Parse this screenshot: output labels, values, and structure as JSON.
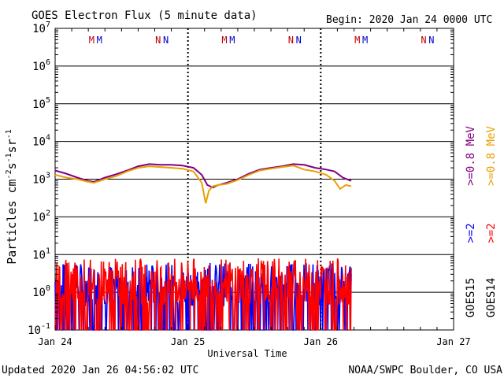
{
  "chart_data": {
    "type": "line",
    "title": "GOES Electron Flux (5 minute data)",
    "begin_label": "Begin: 2020 Jan 24 0000 UTC",
    "xlabel": "Universal Time",
    "ylabel_main": "Particles cm",
    "ylabel_sup1": "-2",
    "ylabel_s": "s",
    "ylabel_sup2": "-1",
    "ylabel_sr": "sr",
    "ylabel_sup3": "-1",
    "yscale": "log",
    "ylim": [
      0.1,
      10000000
    ],
    "y_ticks": [
      {
        "base": "10",
        "exp": "7",
        "value": 10000000
      },
      {
        "base": "10",
        "exp": "6",
        "value": 1000000
      },
      {
        "base": "10",
        "exp": "5",
        "value": 100000
      },
      {
        "base": "10",
        "exp": "4",
        "value": 10000
      },
      {
        "base": "10",
        "exp": "3",
        "value": 1000
      },
      {
        "base": "10",
        "exp": "2",
        "value": 100
      },
      {
        "base": "10",
        "exp": "1",
        "value": 10
      },
      {
        "base": "10",
        "exp": "0",
        "value": 1
      },
      {
        "base": "10",
        "exp": "-1",
        "value": 0.1
      }
    ],
    "x_ticks": [
      "Jan 24",
      "Jan 25",
      "Jan 26",
      "Jan 27"
    ],
    "xlim_hours": [
      0,
      72
    ],
    "threshold_line": 1000,
    "grid": true,
    "mn_markers": [
      {
        "hour": 6.6,
        "label": "M",
        "color": "#c00000"
      },
      {
        "hour": 8.0,
        "label": "M",
        "color": "#0000cc"
      },
      {
        "hour": 18.6,
        "label": "N",
        "color": "#c00000"
      },
      {
        "hour": 20.0,
        "label": "N",
        "color": "#0000cc"
      },
      {
        "hour": 30.6,
        "label": "M",
        "color": "#c00000"
      },
      {
        "hour": 32.0,
        "label": "M",
        "color": "#0000cc"
      },
      {
        "hour": 42.6,
        "label": "N",
        "color": "#c00000"
      },
      {
        "hour": 44.0,
        "label": "N",
        "color": "#0000cc"
      },
      {
        "hour": 54.6,
        "label": "M",
        "color": "#c00000"
      },
      {
        "hour": 56.0,
        "label": "M",
        "color": "#0000cc"
      },
      {
        "hour": 66.6,
        "label": "N",
        "color": "#c00000"
      },
      {
        "hour": 68.0,
        "label": "N",
        "color": "#0000cc"
      }
    ],
    "legend_right": [
      {
        "text": ">=0.8  MeV",
        "color": "#e8a000",
        "group": "GOES14"
      },
      {
        "text": ">=2",
        "color": "#ff0000",
        "group": "GOES14"
      },
      {
        "text": "GOES14",
        "color": "#000000",
        "group": "GOES14"
      },
      {
        "text": ">=0.8  MeV",
        "color": "#800080",
        "group": "GOES15"
      },
      {
        "text": ">=2",
        "color": "#0000ff",
        "group": "GOES15"
      },
      {
        "text": "GOES15",
        "color": "#000000",
        "group": "GOES15"
      }
    ],
    "series": [
      {
        "name": "GOES15 >=0.8 MeV",
        "color": "#800080",
        "hours": [
          0,
          2,
          4,
          6,
          7,
          9,
          11,
          13,
          15,
          17,
          19,
          21,
          23,
          25,
          26.5,
          27.5,
          28.5,
          29.5,
          31,
          33,
          35,
          37,
          39,
          41,
          43,
          45,
          47,
          49,
          50.5,
          52,
          53.5
        ],
        "values": [
          1700,
          1400,
          1100,
          900,
          850,
          1100,
          1350,
          1700,
          2200,
          2500,
          2400,
          2400,
          2300,
          2000,
          1300,
          700,
          600,
          700,
          800,
          1000,
          1400,
          1800,
          2000,
          2200,
          2500,
          2400,
          2000,
          1800,
          1600,
          1100,
          900
        ]
      },
      {
        "name": "GOES14 >=0.8 MeV",
        "color": "#e8a000",
        "hours": [
          0,
          2,
          4,
          6,
          7,
          9,
          11,
          13,
          15,
          17,
          19,
          21,
          23,
          25,
          26.5,
          27.2,
          27.8,
          28.5,
          29.5,
          31,
          33,
          35,
          37,
          39,
          41,
          43,
          45,
          47,
          49,
          50.5,
          51.5,
          52.5,
          53.5
        ],
        "values": [
          1300,
          1100,
          1000,
          850,
          800,
          1000,
          1200,
          1600,
          2000,
          2200,
          2100,
          2000,
          1900,
          1600,
          800,
          230,
          500,
          650,
          700,
          750,
          950,
          1300,
          1700,
          1900,
          2100,
          2300,
          1800,
          1600,
          1300,
          900,
          550,
          700,
          650
        ]
      },
      {
        "name": "GOES15 >=2",
        "color": "#0000ff",
        "hours_range": [
          0,
          53.5
        ],
        "min": 0.1,
        "max": 6
      },
      {
        "name": "GOES14 >=2",
        "color": "#ff0000",
        "hours_range": [
          0,
          53.5
        ],
        "min": 0.1,
        "max": 8
      }
    ]
  },
  "footer": {
    "updated": "Updated 2020 Jan 26 04:56:02 UTC",
    "credit": "NOAA/SWPC Boulder, CO USA"
  }
}
